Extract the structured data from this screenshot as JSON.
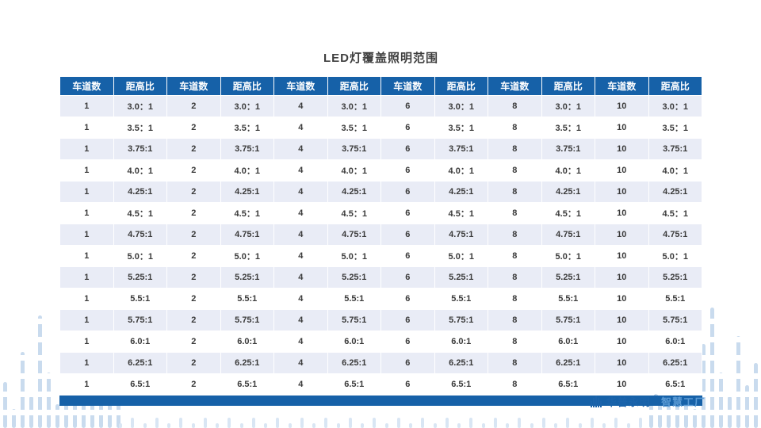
{
  "title": "LED灯覆盖照明范围",
  "table": {
    "header_pair": [
      "车道数",
      "距高比"
    ],
    "lanes": [
      "1",
      "2",
      "4",
      "6",
      "8",
      "10"
    ],
    "ratios": [
      "3.0：1",
      "3.5：1",
      "3.75:1",
      "4.0：1",
      "4.25:1",
      "4.5：1",
      "4.75:1",
      "5.0：1",
      "5.25:1",
      "5.5:1",
      "5.75:1",
      "6.0:1",
      "6.25:1",
      "6.5:1"
    ]
  },
  "footer": {
    "brand": "华普永明",
    "reg": "®",
    "suffix": "智慧工厂",
    "logo_icon": "equalizer-bars-logo"
  },
  "colors": {
    "header_bg": "#1661a8",
    "band_bg": "#e9ecf6",
    "accent_blue": "#1b63ab",
    "light_blue": "#5b9bd5",
    "decor_blue": "#c9dbee"
  }
}
